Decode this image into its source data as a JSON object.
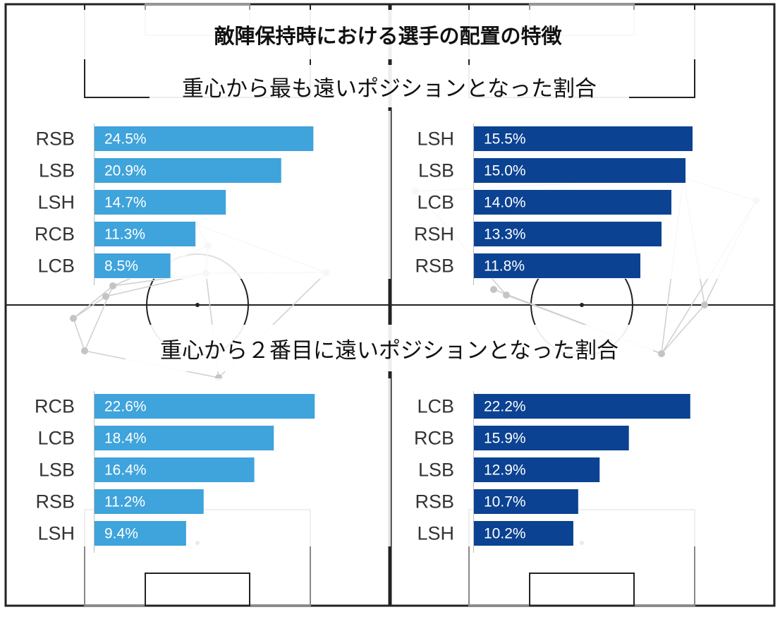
{
  "title": "敵陣保持時における選手の配置の特徴",
  "subtitle_top": "重心から最も遠いポジションとなった割合",
  "subtitle_bottom": "重心から２番目に遠いポジションとなった割合",
  "colors": {
    "team_left": "#3fa3dc",
    "team_right": "#0b4292",
    "pitch_line": "#222222",
    "network": "#cfcfcf"
  },
  "chart_data": [
    {
      "type": "bar",
      "orientation": "horizontal",
      "categories": [
        "RSB",
        "LSB",
        "LSH",
        "RCB",
        "LCB"
      ],
      "values": [
        24.5,
        20.9,
        14.7,
        11.3,
        8.5
      ],
      "value_labels": [
        "24.5%",
        "20.9%",
        "14.7%",
        "11.3%",
        "8.5%"
      ],
      "color": "#3fa3dc",
      "xlim": [
        0,
        30
      ]
    },
    {
      "type": "bar",
      "orientation": "horizontal",
      "categories": [
        "LSH",
        "LSB",
        "LCB",
        "RSH",
        "RSB"
      ],
      "values": [
        15.5,
        15.0,
        14.0,
        13.3,
        11.8
      ],
      "value_labels": [
        "15.5%",
        "15.0%",
        "14.0%",
        "13.3%",
        "11.8%"
      ],
      "color": "#0b4292",
      "xlim": [
        0,
        19
      ]
    },
    {
      "type": "bar",
      "orientation": "horizontal",
      "categories": [
        "RCB",
        "LCB",
        "LSB",
        "RSB",
        "LSH"
      ],
      "values": [
        22.6,
        18.4,
        16.4,
        11.2,
        9.4
      ],
      "value_labels": [
        "22.6%",
        "18.4%",
        "16.4%",
        "11.2%",
        "9.4%"
      ],
      "color": "#3fa3dc",
      "xlim": [
        0,
        27.5
      ]
    },
    {
      "type": "bar",
      "orientation": "horizontal",
      "categories": [
        "LCB",
        "RCB",
        "LSB",
        "RSB",
        "LSH"
      ],
      "values": [
        22.2,
        15.9,
        12.9,
        10.7,
        10.2
      ],
      "value_labels": [
        "22.2%",
        "15.9%",
        "12.9%",
        "10.7%",
        "10.2%"
      ],
      "color": "#0b4292",
      "xlim": [
        0,
        27.5
      ]
    }
  ]
}
